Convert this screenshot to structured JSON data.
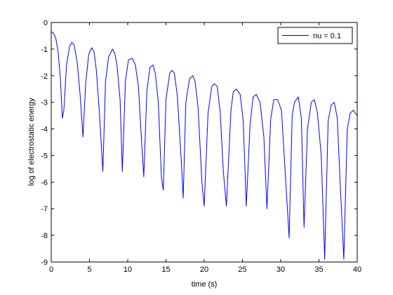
{
  "chart_data": {
    "type": "line",
    "title": "",
    "xlabel": "time (s)",
    "ylabel": "log of electrostatic energy",
    "xlim": [
      0,
      40
    ],
    "ylim": [
      -9,
      0
    ],
    "xticks": [
      0,
      5,
      10,
      15,
      20,
      25,
      30,
      35,
      40
    ],
    "yticks": [
      0,
      -1,
      -2,
      -3,
      -4,
      -5,
      -6,
      -7,
      -8,
      -9
    ],
    "grid": false,
    "legend_position": "top-right",
    "series": [
      {
        "name": "nu = 0.1",
        "color": "#0000ff",
        "x": [
          0,
          0.3,
          0.6,
          0.9,
          1.2,
          1.45,
          1.65,
          2.0,
          2.4,
          2.7,
          3.0,
          3.4,
          3.8,
          4.15,
          4.5,
          4.9,
          5.3,
          5.6,
          5.9,
          6.3,
          6.75,
          7.1,
          7.5,
          8.0,
          8.3,
          8.6,
          9.0,
          9.3,
          9.7,
          10.1,
          10.6,
          11.0,
          11.4,
          11.8,
          12.1,
          12.5,
          12.9,
          13.3,
          13.6,
          14.0,
          14.4,
          14.65,
          15.0,
          15.5,
          15.8,
          16.1,
          16.5,
          17.0,
          17.25,
          17.6,
          18.1,
          18.5,
          18.8,
          19.2,
          19.7,
          20.0,
          20.5,
          21.0,
          21.3,
          21.7,
          22.1,
          22.5,
          22.9,
          23.5,
          23.8,
          24.2,
          24.7,
          25.1,
          25.5,
          26.0,
          26.4,
          26.8,
          27.3,
          27.8,
          28.2,
          28.7,
          29.1,
          29.6,
          30.1,
          30.5,
          31.1,
          31.5,
          31.8,
          32.3,
          32.7,
          33.05,
          33.5,
          34.0,
          34.4,
          34.8,
          35.3,
          35.75,
          36.2,
          36.6,
          37.0,
          37.4,
          37.8,
          38.25,
          38.7,
          39.1,
          39.5,
          40.0
        ],
        "y": [
          -0.35,
          -0.4,
          -0.6,
          -1.1,
          -2.1,
          -3.6,
          -3.3,
          -1.6,
          -0.9,
          -0.75,
          -0.85,
          -1.5,
          -2.8,
          -4.3,
          -2.3,
          -1.2,
          -0.95,
          -1.1,
          -1.8,
          -3.4,
          -5.6,
          -2.2,
          -1.3,
          -1.0,
          -1.15,
          -1.6,
          -2.9,
          -5.6,
          -2.2,
          -1.4,
          -1.35,
          -1.6,
          -2.4,
          -4.4,
          -5.8,
          -2.6,
          -1.7,
          -1.6,
          -1.9,
          -3.0,
          -5.8,
          -6.3,
          -2.9,
          -1.9,
          -1.8,
          -1.9,
          -2.8,
          -5.2,
          -6.6,
          -3.0,
          -2.1,
          -2.0,
          -2.2,
          -3.2,
          -6.0,
          -6.9,
          -3.4,
          -2.4,
          -2.3,
          -2.4,
          -3.4,
          -5.6,
          -6.9,
          -3.3,
          -2.6,
          -2.5,
          -2.7,
          -3.7,
          -6.9,
          -3.8,
          -2.8,
          -2.7,
          -3.0,
          -4.3,
          -7.0,
          -3.6,
          -2.9,
          -2.9,
          -3.3,
          -5.2,
          -8.1,
          -3.5,
          -3.0,
          -2.8,
          -3.6,
          -7.7,
          -4.0,
          -3.0,
          -2.9,
          -3.4,
          -5.0,
          -8.9,
          -3.7,
          -3.1,
          -3.0,
          -3.6,
          -6.2,
          -8.9,
          -4.0,
          -3.4,
          -3.3,
          -3.5
        ]
      }
    ]
  }
}
